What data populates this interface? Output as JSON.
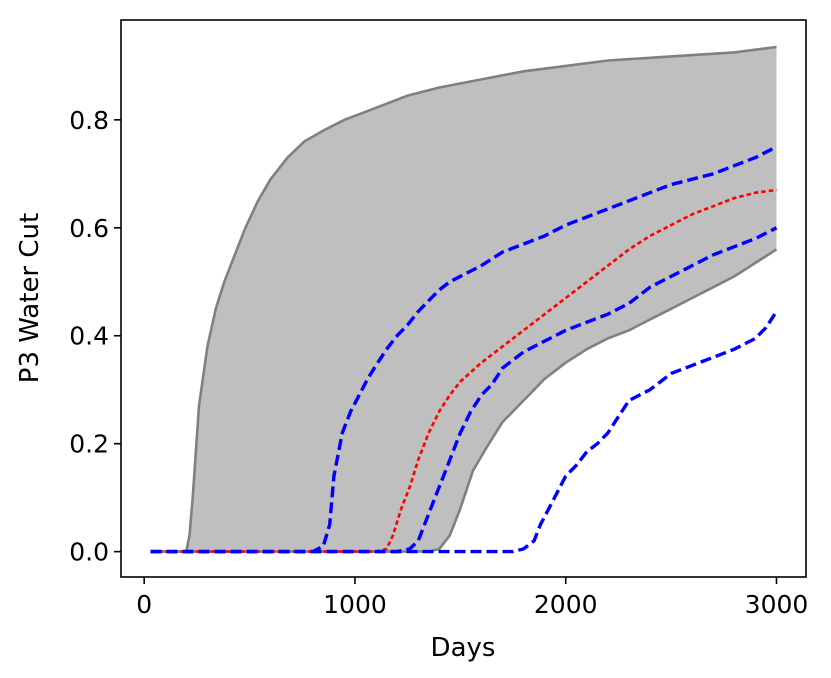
{
  "chart_data": {
    "type": "line",
    "title": "",
    "xlabel": "Days",
    "ylabel": "P3 Water Cut",
    "xlim": [
      -110,
      3140
    ],
    "ylim": [
      -0.047,
      0.985
    ],
    "xticks": [
      0,
      1000,
      2000,
      3000
    ],
    "xtick_labels": [
      "0",
      "1000",
      "2000",
      "3000"
    ],
    "yticks": [
      0.0,
      0.2,
      0.4,
      0.6,
      0.8
    ],
    "ytick_labels": [
      "0.0",
      "0.2",
      "0.4",
      "0.6",
      "0.8"
    ],
    "grid": false,
    "legend": "none",
    "band": {
      "fill_color": "#bfbfbf",
      "edge_color": "#808080",
      "upper": [
        [
          30,
          0
        ],
        [
          200,
          0
        ],
        [
          215,
          0.03
        ],
        [
          230,
          0.1
        ],
        [
          260,
          0.27
        ],
        [
          300,
          0.38
        ],
        [
          340,
          0.45
        ],
        [
          380,
          0.5
        ],
        [
          430,
          0.55
        ],
        [
          480,
          0.6
        ],
        [
          540,
          0.65
        ],
        [
          600,
          0.69
        ],
        [
          680,
          0.73
        ],
        [
          760,
          0.76
        ],
        [
          850,
          0.78
        ],
        [
          950,
          0.8
        ],
        [
          1050,
          0.815
        ],
        [
          1150,
          0.83
        ],
        [
          1250,
          0.845
        ],
        [
          1400,
          0.86
        ],
        [
          1600,
          0.875
        ],
        [
          1800,
          0.89
        ],
        [
          2000,
          0.9
        ],
        [
          2200,
          0.91
        ],
        [
          2400,
          0.915
        ],
        [
          2600,
          0.92
        ],
        [
          2800,
          0.925
        ],
        [
          3000,
          0.935
        ]
      ],
      "lower": [
        [
          30,
          0
        ],
        [
          1350,
          0
        ],
        [
          1400,
          0.005
        ],
        [
          1450,
          0.03
        ],
        [
          1500,
          0.08
        ],
        [
          1560,
          0.15
        ],
        [
          1620,
          0.19
        ],
        [
          1700,
          0.24
        ],
        [
          1800,
          0.28
        ],
        [
          1900,
          0.32
        ],
        [
          2000,
          0.35
        ],
        [
          2100,
          0.375
        ],
        [
          2200,
          0.395
        ],
        [
          2300,
          0.41
        ],
        [
          2400,
          0.43
        ],
        [
          2500,
          0.45
        ],
        [
          2600,
          0.47
        ],
        [
          2700,
          0.49
        ],
        [
          2800,
          0.51
        ],
        [
          2900,
          0.535
        ],
        [
          3000,
          0.56
        ]
      ]
    },
    "series": [
      {
        "style": "dotted",
        "color": "#ff0000",
        "x": [
          30,
          1100,
          1150,
          1180,
          1220,
          1260,
          1300,
          1350,
          1400,
          1450,
          1500,
          1600,
          1700,
          1800,
          1900,
          2000,
          2100,
          2200,
          2300,
          2400,
          2500,
          2600,
          2700,
          2800,
          2900,
          3000
        ],
        "y": [
          0,
          0,
          0.005,
          0.03,
          0.08,
          0.12,
          0.17,
          0.22,
          0.26,
          0.29,
          0.315,
          0.35,
          0.38,
          0.41,
          0.44,
          0.47,
          0.5,
          0.53,
          0.56,
          0.585,
          0.605,
          0.625,
          0.64,
          0.655,
          0.665,
          0.67
        ]
      },
      {
        "style": "dashed",
        "color": "#0000ff",
        "x": [
          30,
          800,
          850,
          880,
          900,
          940,
          980,
          1020,
          1060,
          1100,
          1150,
          1200,
          1250,
          1300,
          1350,
          1400,
          1450,
          1500,
          1600,
          1700,
          1800,
          1900,
          2000,
          2100,
          2200,
          2300,
          2400,
          2500,
          2600,
          2700,
          2800,
          2900,
          3000
        ],
        "y": [
          0,
          0,
          0.01,
          0.05,
          0.14,
          0.22,
          0.26,
          0.29,
          0.32,
          0.345,
          0.375,
          0.4,
          0.42,
          0.445,
          0.465,
          0.485,
          0.5,
          0.51,
          0.53,
          0.555,
          0.57,
          0.585,
          0.605,
          0.62,
          0.635,
          0.65,
          0.665,
          0.68,
          0.69,
          0.7,
          0.715,
          0.73,
          0.75
        ]
      },
      {
        "style": "dashed",
        "color": "#0000ff",
        "x": [
          30,
          1200,
          1260,
          1300,
          1340,
          1380,
          1420,
          1460,
          1500,
          1550,
          1600,
          1650,
          1700,
          1800,
          1900,
          2000,
          2100,
          2200,
          2300,
          2400,
          2500,
          2600,
          2700,
          2800,
          2900,
          3000
        ],
        "y": [
          0,
          0,
          0.005,
          0.02,
          0.06,
          0.1,
          0.14,
          0.18,
          0.22,
          0.26,
          0.29,
          0.31,
          0.34,
          0.37,
          0.39,
          0.41,
          0.425,
          0.44,
          0.46,
          0.49,
          0.51,
          0.53,
          0.55,
          0.565,
          0.58,
          0.6
        ]
      },
      {
        "style": "dashed",
        "color": "#0000ff",
        "x": [
          30,
          1750,
          1800,
          1850,
          1880,
          1920,
          1960,
          2000,
          2050,
          2100,
          2150,
          2200,
          2250,
          2300,
          2350,
          2400,
          2450,
          2500,
          2600,
          2700,
          2800,
          2900,
          2950,
          3000
        ],
        "y": [
          0,
          0,
          0.005,
          0.02,
          0.05,
          0.08,
          0.11,
          0.14,
          0.16,
          0.185,
          0.2,
          0.22,
          0.25,
          0.28,
          0.29,
          0.3,
          0.315,
          0.33,
          0.345,
          0.36,
          0.375,
          0.395,
          0.415,
          0.445
        ]
      }
    ]
  }
}
